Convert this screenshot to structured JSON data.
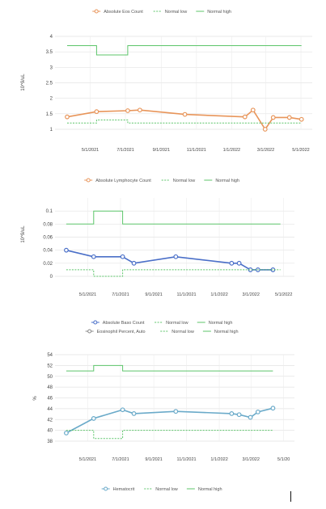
{
  "chart_data": [
    {
      "type": "line",
      "legend": {
        "placement": "top",
        "items": [
          {
            "label": "Absolute Eos Count",
            "color": "#e8955a",
            "style": "marker"
          },
          {
            "label": "Normal low",
            "color": "#5cc56a",
            "style": "dashed"
          },
          {
            "label": "Normal high",
            "color": "#5cc56a",
            "style": "solid"
          }
        ]
      },
      "ylabel": "10^9/uL",
      "ylim": [
        1,
        4
      ],
      "yticks": [
        "1",
        "1.5",
        "2",
        "2.5",
        "3",
        "3.5",
        "4"
      ],
      "xlim": [
        "2021-03-01",
        "2022-05-15"
      ],
      "xticks": [
        "5/1/2021",
        "7/1/2021",
        "9/1/2021",
        "11/1/2021",
        "1/1/2022",
        "3/1/2022",
        "5/1/2022"
      ],
      "grid": "horizontal",
      "series": [
        {
          "name": "Absolute Eos Count",
          "role": "data",
          "color": "#e8955a",
          "x": [
            "2021-03-22",
            "2021-05-12",
            "2021-07-05",
            "2021-07-26",
            "2021-10-12",
            "2022-01-24",
            "2022-02-07",
            "2022-02-28",
            "2022-03-14",
            "2022-04-11",
            "2022-05-02"
          ],
          "values": [
            1.4,
            1.57,
            1.6,
            1.62,
            1.48,
            1.4,
            1.62,
            1.0,
            1.38,
            1.38,
            1.32
          ]
        },
        {
          "name": "Normal low",
          "role": "low",
          "color": "#5cc56a",
          "x": [
            "2021-03-22",
            "2021-05-12",
            "2021-05-12",
            "2021-07-05",
            "2021-07-05",
            "2022-05-02"
          ],
          "values": [
            1.2,
            1.2,
            1.3,
            1.3,
            1.2,
            1.2
          ]
        },
        {
          "name": "Normal high",
          "role": "high",
          "color": "#5cc56a",
          "x": [
            "2021-03-22",
            "2021-05-12",
            "2021-05-12",
            "2021-07-05",
            "2021-07-05",
            "2022-05-02"
          ],
          "values": [
            3.7,
            3.7,
            3.4,
            3.4,
            3.7,
            3.7
          ]
        }
      ]
    },
    {
      "type": "line",
      "legend": {
        "placement": "top",
        "items": [
          {
            "label": "Absolute Lymphocyte Count",
            "color": "#e8955a",
            "style": "marker"
          },
          {
            "label": "Normal low",
            "color": "#5cc56a",
            "style": "dashed"
          },
          {
            "label": "Normal high",
            "color": "#5cc56a",
            "style": "solid"
          }
        ]
      },
      "ylabel": "10^9/uL",
      "ylim": [
        0,
        0.12
      ],
      "yticks": [
        "0",
        "0.02",
        "0.04",
        "0.06",
        "0.08",
        "0.1"
      ],
      "xlim": [
        "2021-03-01",
        "2022-05-15"
      ],
      "xticks": [
        "5/1/2021",
        "7/1/2021",
        "9/1/2021",
        "11/1/2021",
        "1/1/2022",
        "3/1/2022",
        "5/1/2022"
      ],
      "grid": "horizontal",
      "series": [
        {
          "name": "Absolute Baso Count",
          "role": "data",
          "color": "#4a6fc8",
          "x": [
            "2021-03-22",
            "2021-05-12",
            "2021-07-05",
            "2021-07-26",
            "2021-10-12",
            "2022-01-24",
            "2022-02-07",
            "2022-02-28",
            "2022-03-14",
            "2022-04-11"
          ],
          "values": [
            0.04,
            0.03,
            0.03,
            0.02,
            0.03,
            0.02,
            0.02,
            0.01,
            0.01,
            0.01
          ]
        },
        {
          "name": "Normal low",
          "role": "low",
          "color": "#5cc56a",
          "x": [
            "2021-03-22",
            "2021-05-12",
            "2021-05-12",
            "2021-07-05",
            "2021-07-05",
            "2022-04-25"
          ],
          "values": [
            0.01,
            0.01,
            0.0,
            0.0,
            0.01,
            0.01
          ]
        },
        {
          "name": "Normal high",
          "role": "high",
          "color": "#5cc56a",
          "x": [
            "2021-03-22",
            "2021-05-12",
            "2021-05-12",
            "2021-07-05",
            "2021-07-05",
            "2022-04-25"
          ],
          "values": [
            0.08,
            0.08,
            0.1,
            0.1,
            0.08,
            0.08
          ]
        }
      ]
    },
    {
      "type": "line",
      "legend": {
        "placement": "top",
        "items": [
          {
            "label": "Absolute Baso Count",
            "color": "#4a6fc8",
            "style": "marker"
          },
          {
            "label": "Normal low",
            "color": "#5cc56a",
            "style": "dashed"
          },
          {
            "label": "Normal high",
            "color": "#5cc56a",
            "style": "solid"
          }
        ],
        "items2": [
          {
            "label": "Eosinophil Percent, Auto",
            "color": "#888888",
            "style": "marker"
          },
          {
            "label": "Normal low",
            "color": "#5cc56a",
            "style": "dashed"
          },
          {
            "label": "Normal high",
            "color": "#5cc56a",
            "style": "solid"
          }
        ]
      },
      "ylabel": "%",
      "ylim": [
        38,
        54
      ],
      "yticks": [
        "38",
        "40",
        "42",
        "44",
        "46",
        "48",
        "50",
        "52",
        "54"
      ],
      "xlim": [
        "2021-03-01",
        "2022-05-15"
      ],
      "xticks": [
        "5/1/2021",
        "7/1/2021",
        "9/1/2021",
        "11/1/2021",
        "1/1/2022",
        "3/1/2022",
        "5/1/20"
      ],
      "grid": "horizontal",
      "series": [
        {
          "name": "Hematocrit",
          "role": "data",
          "color": "#6aaac9",
          "x": [
            "2021-03-22",
            "2021-05-12",
            "2021-07-05",
            "2021-07-26",
            "2021-10-12",
            "2022-01-24",
            "2022-02-07",
            "2022-02-28",
            "2022-03-14",
            "2022-04-11"
          ],
          "values": [
            39.5,
            42.2,
            43.8,
            43.1,
            43.5,
            43.1,
            42.9,
            42.4,
            43.4,
            44.1
          ]
        },
        {
          "name": "Normal low",
          "role": "low",
          "color": "#5cc56a",
          "x": [
            "2021-03-22",
            "2021-05-12",
            "2021-05-12",
            "2021-07-05",
            "2021-07-05",
            "2022-04-11"
          ],
          "values": [
            40,
            40,
            38.5,
            38.5,
            40,
            40
          ]
        },
        {
          "name": "Normal high",
          "role": "high",
          "color": "#5cc56a",
          "x": [
            "2021-03-22",
            "2021-05-12",
            "2021-05-12",
            "2021-07-05",
            "2021-07-05",
            "2022-04-11"
          ],
          "values": [
            51,
            51,
            52,
            52,
            51,
            51
          ]
        }
      ],
      "bottom_legend": [
        {
          "label": "Hematocrit",
          "color": "#6aaac9",
          "style": "marker"
        },
        {
          "label": "Normal low",
          "color": "#5cc56a",
          "style": "dashed"
        },
        {
          "label": "Normal high",
          "color": "#5cc56a",
          "style": "solid"
        }
      ]
    }
  ]
}
